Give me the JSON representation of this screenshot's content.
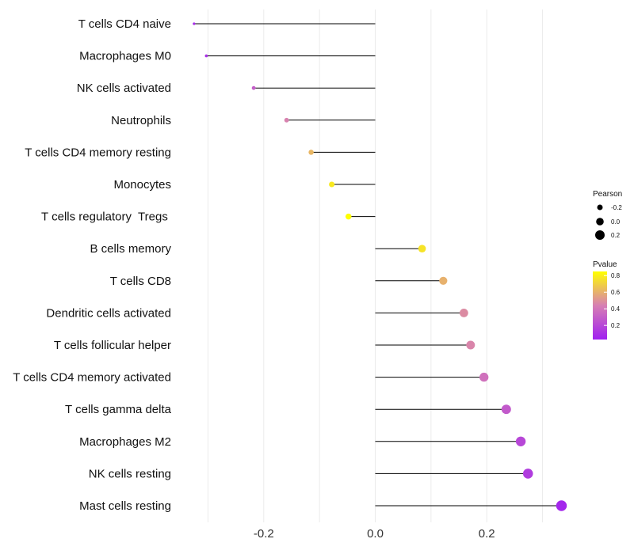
{
  "chart_data": {
    "type": "lollipop",
    "title": "",
    "xlabel": "",
    "ylabel": "",
    "xlim": [
      -0.34,
      0.34
    ],
    "x_ticks": [
      -0.2,
      0.0,
      0.2
    ],
    "x_tick_labels": [
      "-0.2",
      "0.0",
      "0.2"
    ],
    "grid": true,
    "categories": [
      "T cells CD4 naive",
      "Macrophages M0",
      "NK cells activated",
      "Neutrophils",
      "T cells CD4 memory resting",
      "Monocytes",
      "T cells regulatory  Tregs ",
      "B cells memory",
      "T cells CD8",
      "Dendritic cells activated",
      "T cells follicular helper",
      "T cells CD4 memory activated",
      "T cells gamma delta",
      "Macrophages M2",
      "NK cells resting",
      "Mast cells resting"
    ],
    "values": [
      -0.325,
      -0.303,
      -0.218,
      -0.159,
      -0.115,
      -0.078,
      -0.048,
      0.084,
      0.122,
      0.159,
      0.171,
      0.195,
      0.235,
      0.261,
      0.274,
      0.334
    ],
    "pvalues": [
      0.08,
      0.1,
      0.3,
      0.45,
      0.62,
      0.78,
      0.88,
      0.76,
      0.6,
      0.48,
      0.46,
      0.38,
      0.28,
      0.2,
      0.15,
      0.06
    ],
    "legend": {
      "placement": "right",
      "size_title": "Pearson",
      "size_values": [
        -0.2,
        0.0,
        0.2
      ],
      "size_labels": [
        "-0.2",
        "0.0",
        "0.2"
      ],
      "color_title": "Pvalue",
      "color_ticks": [
        0.8,
        0.6,
        0.4,
        0.2
      ],
      "color_tick_labels": [
        "0.8",
        "0.6",
        "0.4",
        "0.2"
      ],
      "color_low": "#a020f0",
      "color_mid": "#d77fb3",
      "color_high": "#ffff00",
      "color_range": [
        0.03,
        0.85
      ]
    }
  }
}
